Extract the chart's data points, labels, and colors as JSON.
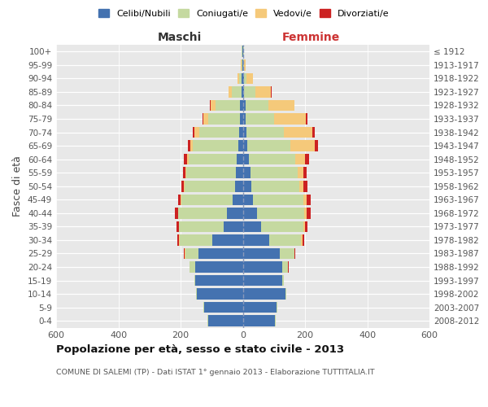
{
  "age_groups": [
    "0-4",
    "5-9",
    "10-14",
    "15-19",
    "20-24",
    "25-29",
    "30-34",
    "35-39",
    "40-44",
    "45-49",
    "50-54",
    "55-59",
    "60-64",
    "65-69",
    "70-74",
    "75-79",
    "80-84",
    "85-89",
    "90-94",
    "95-99",
    "100+"
  ],
  "birth_years": [
    "2008-2012",
    "2003-2007",
    "1998-2002",
    "1993-1997",
    "1988-1992",
    "1983-1987",
    "1978-1982",
    "1973-1977",
    "1968-1972",
    "1963-1967",
    "1958-1962",
    "1953-1957",
    "1948-1952",
    "1943-1947",
    "1938-1942",
    "1933-1937",
    "1928-1932",
    "1923-1927",
    "1918-1922",
    "1913-1917",
    "≤ 1912"
  ],
  "maschi_celibi": [
    112,
    125,
    148,
    152,
    152,
    143,
    98,
    62,
    52,
    32,
    25,
    22,
    20,
    15,
    12,
    10,
    8,
    5,
    3,
    2,
    2
  ],
  "maschi_coniugati": [
    3,
    3,
    3,
    3,
    18,
    42,
    105,
    142,
    155,
    165,
    162,
    160,
    155,
    145,
    128,
    100,
    80,
    30,
    8,
    3,
    2
  ],
  "maschi_vedovi": [
    0,
    0,
    0,
    0,
    0,
    2,
    2,
    2,
    2,
    2,
    2,
    3,
    5,
    8,
    15,
    18,
    15,
    10,
    5,
    2,
    0
  ],
  "maschi_divorziati": [
    0,
    0,
    0,
    0,
    2,
    2,
    5,
    8,
    10,
    8,
    8,
    8,
    10,
    8,
    5,
    2,
    2,
    0,
    0,
    0,
    0
  ],
  "femmine_nubili": [
    103,
    108,
    138,
    128,
    128,
    120,
    85,
    58,
    45,
    32,
    28,
    25,
    20,
    15,
    12,
    10,
    8,
    5,
    3,
    2,
    2
  ],
  "femmine_coniugate": [
    3,
    3,
    3,
    5,
    18,
    45,
    103,
    138,
    153,
    162,
    155,
    152,
    148,
    138,
    120,
    90,
    75,
    35,
    10,
    3,
    2
  ],
  "femmine_vedove": [
    0,
    0,
    0,
    0,
    0,
    2,
    4,
    4,
    8,
    10,
    13,
    18,
    33,
    78,
    92,
    102,
    82,
    50,
    20,
    5,
    1
  ],
  "femmine_divorziate": [
    0,
    0,
    0,
    0,
    2,
    2,
    5,
    8,
    12,
    15,
    12,
    10,
    12,
    10,
    8,
    5,
    2,
    2,
    0,
    0,
    0
  ],
  "colors_celibi": "#4472b0",
  "colors_coniugati": "#c5d9a0",
  "colors_vedovi": "#f5c97a",
  "colors_divorziati": "#cc2222",
  "legend_labels": [
    "Celibi/Nubili",
    "Coniugati/e",
    "Vedovi/e",
    "Divorziati/e"
  ],
  "title": "Popolazione per età, sesso e stato civile - 2013",
  "subtitle": "COMUNE DI SALEMI (TP) - Dati ISTAT 1° gennaio 2013 - Elaborazione TUTTITALIA.IT",
  "label_maschi": "Maschi",
  "label_femmine": "Femmine",
  "ylabel_left": "Fasce di età",
  "xlim": 600,
  "bg_color": "#ffffff",
  "plot_bg": "#e8e8e8"
}
